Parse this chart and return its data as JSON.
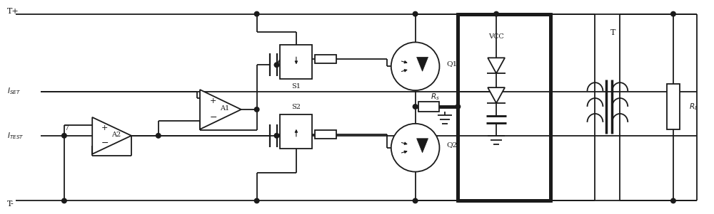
{
  "bg_color": "#ffffff",
  "line_color": "#1a1a1a",
  "lw": 1.3,
  "tlw": 3.5,
  "fig_w": 10.0,
  "fig_h": 3.01,
  "ytop": 2.82,
  "ybot": 0.18,
  "yiset": 1.72,
  "yitest": 1.1,
  "labels": {
    "Tplus": "T+",
    "Tminus": "T-",
    "ISET": "$I_{SET}$",
    "ITEST": "$I_{TEST}$",
    "A1": "A1",
    "A2": "A2",
    "S1": "S1",
    "S2": "S2",
    "Q1": "Q1",
    "Q2": "Q2",
    "Rs": "$R_s$",
    "VCC": "VCC",
    "Tlabel": "T",
    "RL": "$R_L$",
    "node7": "7"
  }
}
